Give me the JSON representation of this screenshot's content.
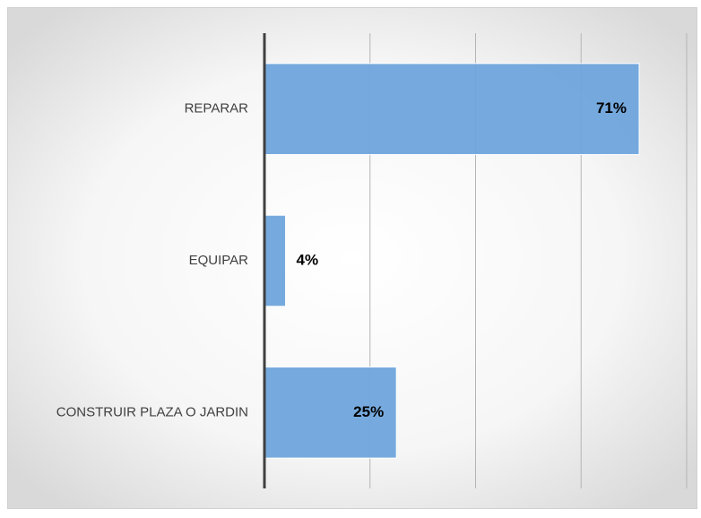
{
  "chart_data": {
    "type": "bar",
    "orientation": "horizontal",
    "categories": [
      "REPARAR",
      "EQUIPAR",
      "CONSTRUIR PLAZA O JARDIN"
    ],
    "values": [
      71,
      4,
      25
    ],
    "value_labels": [
      "71%",
      "4%",
      "25%"
    ],
    "color": "#6fa5dc",
    "xlim": [
      0,
      80
    ],
    "xticks": [
      0,
      20,
      40,
      60,
      80
    ],
    "grid": true
  }
}
